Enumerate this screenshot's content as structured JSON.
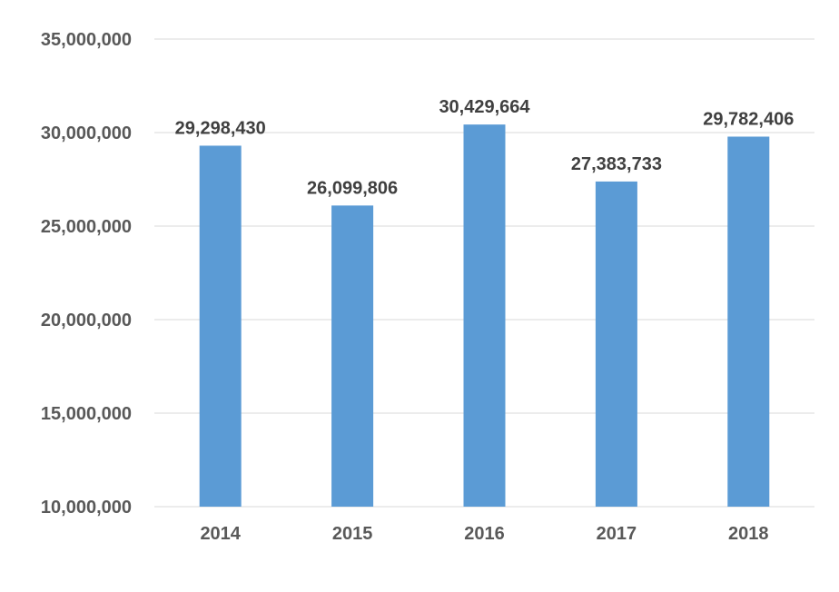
{
  "chart_data": {
    "type": "bar",
    "title": "",
    "xlabel": "",
    "ylabel": "",
    "categories": [
      "2014",
      "2015",
      "2016",
      "2017",
      "2018"
    ],
    "values": [
      29298430,
      26099806,
      30429664,
      27383733,
      29782406
    ],
    "data_labels": [
      "29,298,430",
      "26,099,806",
      "30,429,664",
      "27,383,733",
      "29,782,406"
    ],
    "ylim": [
      10000000,
      35000000
    ],
    "yticks": [
      10000000,
      15000000,
      20000000,
      25000000,
      30000000,
      35000000
    ],
    "ytick_labels": [
      "10,000,000",
      "15,000,000",
      "20,000,000",
      "25,000,000",
      "30,000,000",
      "35,000,000"
    ],
    "grid": true,
    "legend": "none",
    "colors": {
      "bar": "#5b9bd5",
      "grid": "#d9d9d9",
      "tick_text": "#595959",
      "label_text": "#404040"
    }
  }
}
